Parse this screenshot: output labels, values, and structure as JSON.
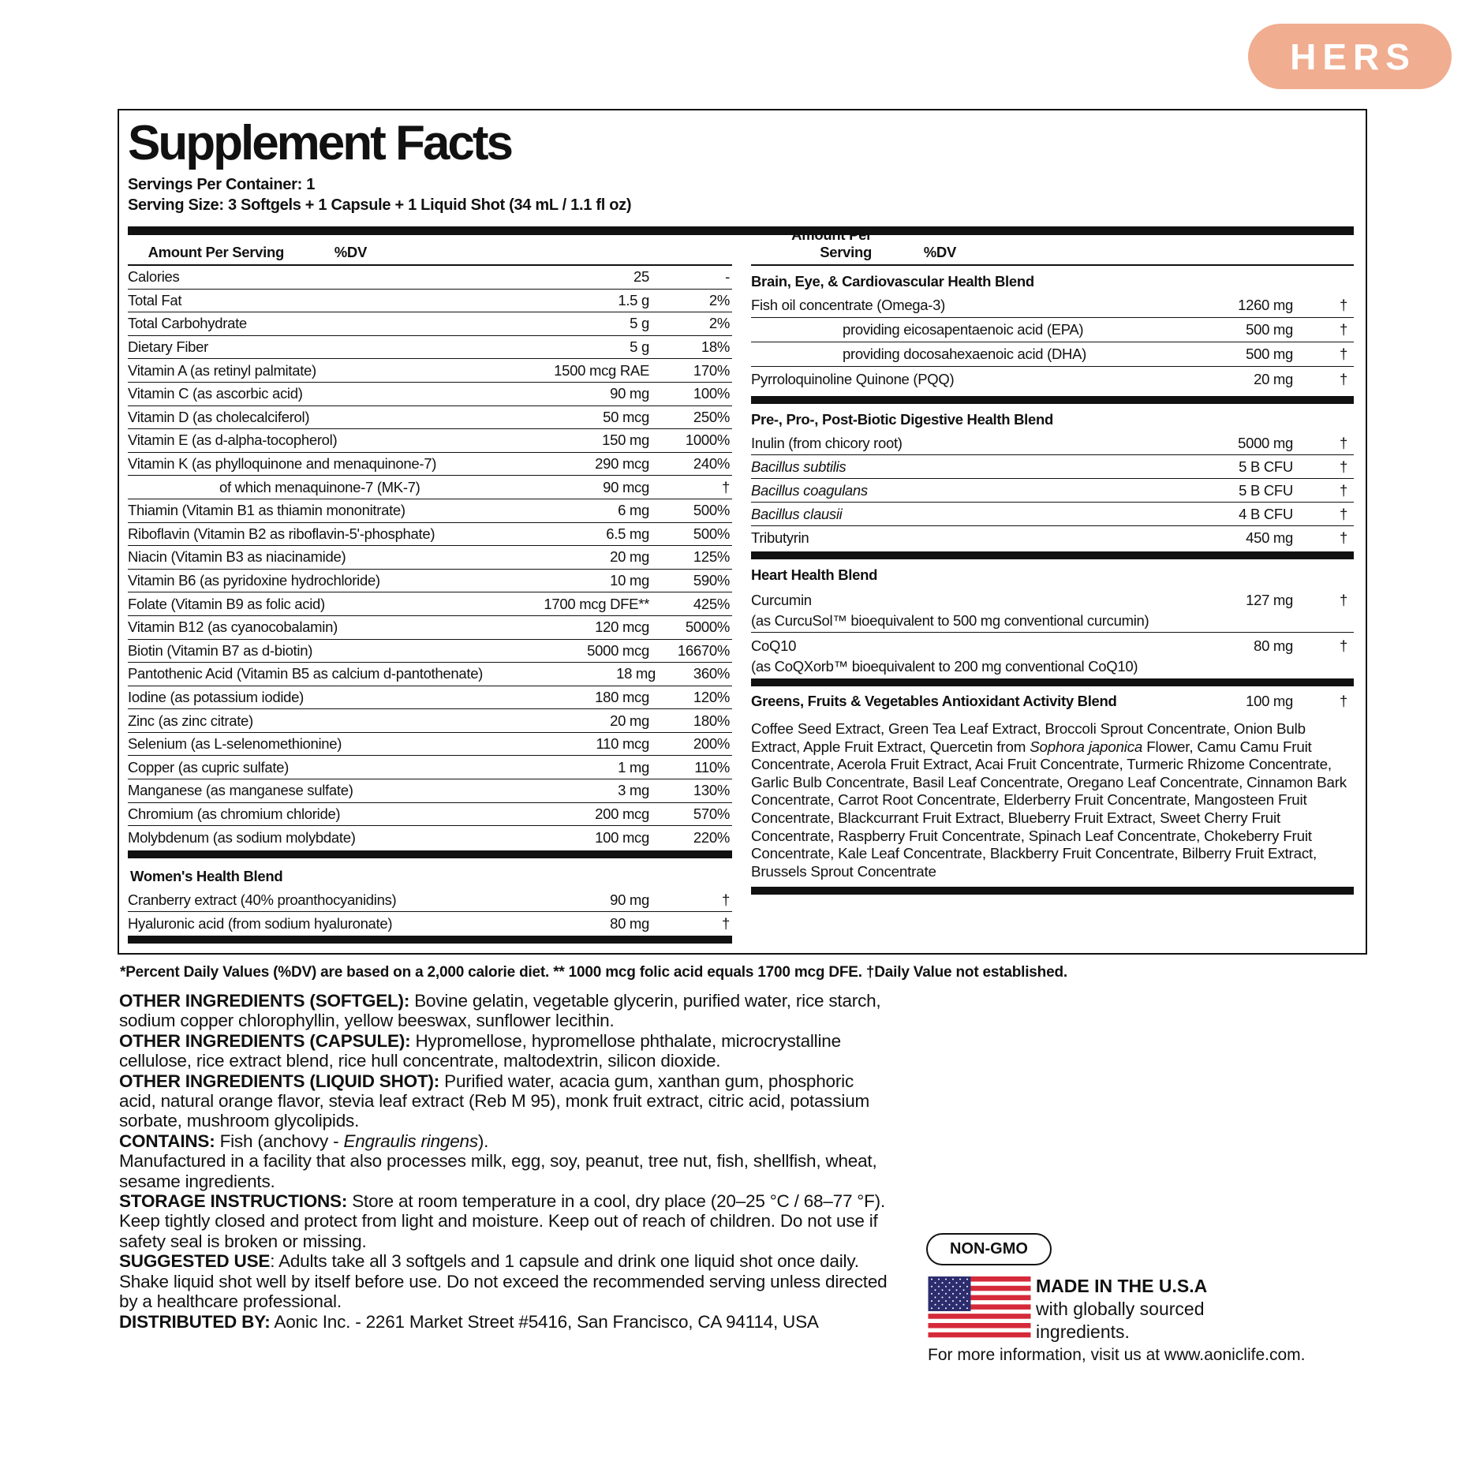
{
  "badge": "HERS",
  "title": "Supplement Facts",
  "servings_per_container": "Servings Per Container: 1",
  "serving_size": "Serving Size: 3 Softgels + 1 Capsule + 1 Liquid Shot (34 mL / 1.1 fl oz)",
  "headers": {
    "amount": "Amount Per Serving",
    "dv": "%DV"
  },
  "left_rows": [
    {
      "name": "Calories",
      "amount": "25",
      "dv": "-"
    },
    {
      "name": "Total Fat",
      "amount": "1.5 g",
      "dv": "2%"
    },
    {
      "name": "Total Carbohydrate",
      "amount": "5 g",
      "dv": "2%"
    },
    {
      "name": "Dietary Fiber",
      "amount": "5 g",
      "dv": "18%"
    },
    {
      "name": "Vitamin A (as retinyl palmitate)",
      "amount": "1500 mcg RAE",
      "dv": "170%"
    },
    {
      "name": "Vitamin C (as ascorbic acid)",
      "amount": "90 mg",
      "dv": "100%"
    },
    {
      "name": "Vitamin D (as cholecalciferol)",
      "amount": "50 mcg",
      "dv": "250%"
    },
    {
      "name": "Vitamin E (as d-alpha-tocopherol)",
      "amount": "150 mg",
      "dv": "1000%"
    },
    {
      "name": "Vitamin K (as phylloquinone and menaquinone-7)",
      "amount": "290 mcg",
      "dv": "240%"
    },
    {
      "name": "of which menaquinone-7 (MK-7)",
      "amount": "90 mcg",
      "dv": "†",
      "indent": true
    },
    {
      "name": "Thiamin (Vitamin B1 as thiamin mononitrate)",
      "amount": "6 mg",
      "dv": "500%"
    },
    {
      "name": "Riboflavin (Vitamin B2 as riboflavin-5'-phosphate)",
      "amount": "6.5 mg",
      "dv": "500%"
    },
    {
      "name": "Niacin (Vitamin B3 as niacinamide)",
      "amount": "20 mg",
      "dv": "125%"
    },
    {
      "name": "Vitamin B6 (as pyridoxine hydrochloride)",
      "amount": "10 mg",
      "dv": "590%"
    },
    {
      "name": "Folate (Vitamin B9 as folic acid)",
      "amount": "1700 mcg DFE**",
      "dv": "425%"
    },
    {
      "name": "Vitamin B12 (as cyanocobalamin)",
      "amount": "120 mcg",
      "dv": "5000%"
    },
    {
      "name": "Biotin (Vitamin B7 as d-biotin)",
      "amount": "5000 mcg",
      "dv": "16670%"
    },
    {
      "name": "Pantothenic Acid (Vitamin B5 as calcium d-pantothenate)",
      "amount": "18 mg",
      "dv": "360%"
    },
    {
      "name": "Iodine (as potassium iodide)",
      "amount": "180 mcg",
      "dv": "120%"
    },
    {
      "name": "Zinc (as zinc citrate)",
      "amount": "20 mg",
      "dv": "180%"
    },
    {
      "name": "Selenium (as L-selenomethionine)",
      "amount": "110 mcg",
      "dv": "200%"
    },
    {
      "name": "Copper (as cupric sulfate)",
      "amount": "1 mg",
      "dv": "110%"
    },
    {
      "name": "Manganese (as manganese sulfate)",
      "amount": "3 mg",
      "dv": "130%"
    },
    {
      "name": "Chromium (as chromium chloride)",
      "amount": "200 mcg",
      "dv": "570%"
    },
    {
      "name": "Molybdenum (as sodium molybdate)",
      "amount": "100 mcg",
      "dv": "220%"
    }
  ],
  "womens_blend": {
    "title": "Women's Health Blend",
    "rows": [
      {
        "name": "Cranberry extract (40% proanthocyanidins)",
        "amount": "90 mg",
        "dv": "†"
      },
      {
        "name": "Hyaluronic acid (from sodium hyaluronate)",
        "amount": "80 mg",
        "dv": "†"
      }
    ]
  },
  "brain_blend": {
    "title": "Brain, Eye, & Cardiovascular Health Blend",
    "rows": [
      {
        "name": "Fish oil concentrate (Omega-3)",
        "amount": "1260 mg",
        "dv": "†"
      },
      {
        "name": "providing eicosapentaenoic acid (EPA)",
        "amount": "500 mg",
        "dv": "†",
        "indent": true
      },
      {
        "name": "providing docosahexaenoic acid (DHA)",
        "amount": "500 mg",
        "dv": "†",
        "indent": true
      },
      {
        "name": "Pyrroloquinoline Quinone (PQQ)",
        "amount": "20 mg",
        "dv": "†"
      }
    ]
  },
  "digestive_blend": {
    "title": "Pre-, Pro-, Post-Biotic Digestive Health Blend",
    "rows": [
      {
        "name": "Inulin (from chicory root)",
        "amount": "5000 mg",
        "dv": "†"
      },
      {
        "name": "Bacillus subtilis",
        "amount": "5 B CFU",
        "dv": "†",
        "italic": true
      },
      {
        "name": "Bacillus coagulans",
        "amount": "5 B CFU",
        "dv": "†",
        "italic": true
      },
      {
        "name": "Bacillus clausii",
        "amount": "4 B CFU",
        "dv": "†",
        "italic": true
      },
      {
        "name": "Tributyrin",
        "amount": "450 mg",
        "dv": "†"
      }
    ]
  },
  "heart_blend": {
    "title": "Heart Health Blend",
    "rows": [
      {
        "name": "Curcumin",
        "sub": "(as CurcuSol™ bioequivalent to 500 mg conventional curcumin)",
        "amount": "127 mg",
        "dv": "†"
      },
      {
        "name": "CoQ10",
        "sub": "(as CoQXorb™ bioequivalent to 200 mg conventional CoQ10)",
        "amount": "80 mg",
        "dv": "†"
      }
    ]
  },
  "greens_blend": {
    "title": "Greens, Fruits & Vegetables Antioxidant Activity Blend",
    "amount": "100 mg",
    "dv": "†",
    "list_before": "Coffee Seed Extract, Green Tea Leaf Extract, Broccoli Sprout Concentrate, Onion Bulb Extract, Apple Fruit Extract, Quercetin from ",
    "list_italic": "Sophora japonica",
    "list_after": " Flower, Camu Camu Fruit Concentrate, Acerola Fruit Extract, Acai Fruit Concentrate, Turmeric Rhizome Concentrate, Garlic Bulb Concentrate, Basil Leaf Concentrate, Oregano Leaf Concentrate, Cinnamon Bark Concentrate, Carrot Root Concentrate, Elderberry Fruit Concentrate, Mangosteen Fruit Concentrate, Blackcurrant Fruit Extract, Blueberry Fruit Extract, Sweet Cherry Fruit Concentrate, Raspberry Fruit Concentrate, Spinach Leaf Concentrate, Chokeberry Fruit Concentrate, Kale Leaf Concentrate, Blackberry Fruit Concentrate, Bilberry Fruit Extract, Brussels Sprout Concentrate"
  },
  "footnote": "*Percent Daily Values (%DV) are based on a 2,000 calorie diet. ** 1000 mcg folic acid equals 1700 mcg DFE. †Daily Value not established.",
  "other": [
    {
      "label": "OTHER INGREDIENTS (SOFTGEL):",
      "text": " Bovine gelatin, vegetable glycerin, purified water, rice starch, sodium copper chlorophyllin, yellow beeswax, sunflower lecithin."
    },
    {
      "label": "OTHER INGREDIENTS (CAPSULE):",
      "text": " Hypromellose, hypromellose phthalate, microcrystalline cellulose, rice extract blend, rice hull concentrate, maltodextrin, silicon dioxide."
    },
    {
      "label": "OTHER INGREDIENTS (LIQUID SHOT):",
      "text": " Purified water, acacia gum, xanthan gum, phosphoric acid, natural orange flavor, stevia leaf extract (Reb M 95), monk fruit extract, citric acid, potassium sorbate, mushroom glycolipids."
    }
  ],
  "contains": {
    "label": "CONTAINS:",
    "text": " Fish (anchovy - ",
    "italic": "Engraulis ringens",
    "end": ").",
    "facility": "Manufactured in a facility that also processes milk, egg, soy, peanut, tree nut, fish, shellfish, wheat, sesame ingredients."
  },
  "storage": {
    "label": "STORAGE INSTRUCTIONS:",
    "text": " Store at room temperature in a cool, dry place (20–25 °C / 68–77 °F). Keep tightly closed and protect from light and moisture. Keep out of reach of children.  Do not use if safety seal is broken or missing."
  },
  "suggested": {
    "label": "SUGGESTED USE",
    "text": ": Adults take all 3 softgels and 1 capsule and drink one liquid shot once daily. Shake liquid shot well by itself before use. Do not exceed the recommended serving unless directed by a healthcare professional."
  },
  "distributed": {
    "label": "DISTRIBUTED BY:",
    "text": " Aonic Inc. - 2261 Market Street #5416, San Francisco, CA 94114, USA"
  },
  "non_gmo": "NON-GMO",
  "usa": {
    "title": "MADE IN THE U.S.A",
    "line1": "with globally sourced",
    "line2": "ingredients.",
    "flag_icon": "us-flag-icon"
  },
  "more_info": "For more information, visit us at www.aoniclife.com.",
  "colors": {
    "badge": "#f0ad90",
    "flag_red": "#d42a3a",
    "flag_blue": "#2b2d6e"
  }
}
